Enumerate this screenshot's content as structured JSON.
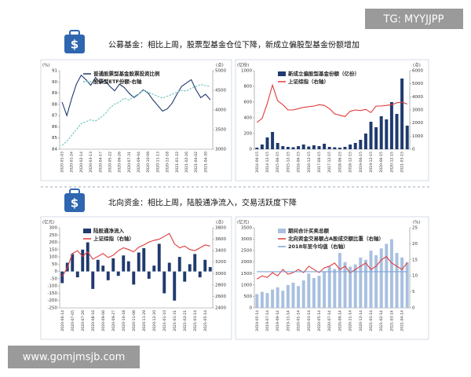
{
  "watermarks": {
    "top": "TG: MYYJJPP",
    "bottom": "www.gomjmsjb.com"
  },
  "sections": [
    {
      "heading": "公募基金：相比上周，股票型基金仓位下降，新成立偏股型基金份额增加"
    },
    {
      "heading": "北向资金：相比上周，陆股通净流入，交易活跃度下降"
    }
  ],
  "chart_data": [
    {
      "type": "line",
      "y_unit": "(%)",
      "y2_unit": "(点)",
      "categories": [
        "2020-01-03",
        null,
        "2020-01-24",
        null,
        "2020-02-14",
        null,
        "2020-03-13",
        null,
        "2020-04-17",
        null,
        "2020-05-22",
        null,
        "2020-06-26",
        null,
        "2020-07-31",
        null,
        "2020-09-04",
        null,
        "2020-10-09",
        null,
        "2020-11-13",
        null,
        "2020-12-18",
        null,
        "2021-01-22",
        null,
        "2021-02-26",
        null,
        "2021-04-02",
        null,
        "2021-04-30",
        null
      ],
      "ylim": [
        84,
        91
      ],
      "yticks": [
        84,
        85,
        86,
        87,
        88,
        89,
        90,
        91
      ],
      "y2lim": [
        3000,
        5000
      ],
      "y2ticks": [
        3000,
        3500,
        4000,
        4500,
        5000
      ],
      "series": [
        {
          "name": "普通股票型基金股票投资比例",
          "color": "#1f3a6e",
          "values": [
            88.2,
            87.0,
            88.5,
            89.8,
            90.6,
            90.2,
            89.7,
            90.4,
            89.9,
            90.1,
            89.6,
            89.2,
            89.8,
            89.5,
            89.0,
            88.6,
            88.9,
            89.3,
            89.0,
            88.4,
            87.9,
            87.4,
            87.6,
            88.1,
            88.9,
            89.6,
            89.9,
            90.2,
            89.3,
            88.6,
            88.9,
            88.4
          ]
        },
        {
          "name": "股票型ETF份额-右轴",
          "color": "#6cc4c0",
          "axis": "y2",
          "dashed": true,
          "values": [
            3100,
            3200,
            3350,
            3500,
            3650,
            3700,
            3750,
            3720,
            3800,
            3900,
            4050,
            4150,
            4200,
            4300,
            4250,
            4350,
            4400,
            4500,
            4450,
            4400,
            4350,
            4300,
            4350,
            4400,
            4450,
            4500,
            4480,
            4550,
            4600,
            4650,
            4620,
            4600
          ]
        }
      ]
    },
    {
      "type": "bar",
      "y_unit": "(亿份)",
      "y2_unit": "(点)",
      "categories": [
        "2014-06-15",
        null,
        "2014-12-15",
        null,
        "2015-06-15",
        null,
        "2015-12-15",
        null,
        "2016-06-15",
        null,
        "2016-12-15",
        null,
        "2017-06-15",
        null,
        "2017-12-15",
        null,
        "2018-06-15",
        null,
        "2018-12-15",
        null,
        "2019-06-15",
        null,
        "2019-12-15",
        null,
        "2020-06-15",
        null,
        "2020-12-15",
        null,
        "2021-03-15",
        null
      ],
      "ylim": [
        0,
        1000
      ],
      "yticks": [
        0,
        200,
        400,
        600,
        800,
        1000
      ],
      "y2lim": [
        0,
        6000
      ],
      "y2ticks": [
        0,
        1000,
        2000,
        3000,
        4000,
        5000,
        6000
      ],
      "series": [
        {
          "name": "新成立偏股型基金份额（亿份）",
          "color": "#1f3a6e",
          "values": [
            20,
            60,
            150,
            220,
            80,
            40,
            30,
            25,
            40,
            60,
            35,
            50,
            40,
            70,
            30,
            25,
            20,
            30,
            60,
            80,
            120,
            200,
            350,
            280,
            420,
            380,
            600,
            450,
            900,
            300
          ]
        },
        {
          "name": "上证综指（右轴）",
          "color": "#e03a3a",
          "type": "line",
          "axis": "y2",
          "values": [
            2050,
            2350,
            3500,
            4900,
            3700,
            3400,
            3000,
            3000,
            3100,
            3200,
            3250,
            3300,
            3400,
            3350,
            3100,
            2700,
            2600,
            2500,
            2900,
            3000,
            2950,
            3050,
            2800,
            3300,
            3300,
            3350,
            3400,
            3550,
            3600,
            3450
          ]
        }
      ]
    },
    {
      "type": "bar",
      "y_unit": "(亿元)",
      "y2_unit": "(点)",
      "categories": [
        "2020-06-14",
        null,
        "2020-07-05",
        null,
        "2020-07-26",
        null,
        "2020-08-16",
        null,
        "2020-09-06",
        null,
        "2020-09-27",
        null,
        "2020-10-18",
        null,
        "2020-11-08",
        null,
        "2020-11-29",
        null,
        "2020-12-20",
        null,
        "2021-01-10",
        null,
        "2021-01-31",
        null,
        "2021-02-21",
        null,
        "2021-03-14",
        null,
        "2021-05-14",
        null
      ],
      "ylim": [
        -250,
        300
      ],
      "yticks": [
        -250,
        -200,
        -150,
        -100,
        -50,
        0,
        50,
        100,
        150,
        200,
        250,
        300
      ],
      "y2lim": [
        2400,
        3800
      ],
      "y2ticks": [
        2400,
        2600,
        2800,
        3000,
        3200,
        3400,
        3600,
        3800
      ],
      "series": [
        {
          "name": "陆股通净流入",
          "color": "#1f3a6e",
          "values": [
            -80,
            60,
            120,
            -40,
            150,
            200,
            -120,
            80,
            40,
            -60,
            90,
            -30,
            110,
            70,
            -90,
            130,
            160,
            -50,
            40,
            190,
            -150,
            60,
            -200,
            100,
            -70,
            50,
            120,
            -40,
            80,
            30
          ]
        },
        {
          "name": "上证综指（右轴）",
          "color": "#e03a3a",
          "type": "line",
          "axis": "y2",
          "values": [
            2950,
            3100,
            3350,
            3400,
            3300,
            3380,
            3250,
            3300,
            3350,
            3280,
            3320,
            3400,
            3450,
            3420,
            3380,
            3460,
            3500,
            3550,
            3580,
            3600,
            3650,
            3700,
            3520,
            3450,
            3480,
            3420,
            3400,
            3450,
            3500,
            3480
          ]
        }
      ]
    },
    {
      "type": "bar",
      "y_unit": "(亿元)",
      "y2_unit": "(%)",
      "categories": [
        "2019-05-14",
        null,
        "2019-07-14",
        null,
        "2019-09-14",
        null,
        "2019-11-14",
        null,
        "2020-01-14",
        null,
        "2020-03-14",
        null,
        "2020-05-14",
        null,
        "2020-07-14",
        null,
        "2020-09-14",
        null,
        "2020-11-14",
        null,
        "2020-12-14",
        null,
        "2021-01-14",
        null,
        "2021-02-14",
        null,
        "2021-03-14",
        null,
        "2021-04-14",
        null
      ],
      "ylim": [
        0,
        3500
      ],
      "yticks": [
        0,
        500,
        1000,
        1500,
        2000,
        2500,
        3000,
        3500
      ],
      "y2lim": [
        0,
        25
      ],
      "y2ticks": [
        0,
        5,
        10,
        15,
        20,
        25
      ],
      "series": [
        {
          "name": "期间合计买卖总额",
          "color": "#a9c0e0",
          "values": [
            600,
            700,
            650,
            800,
            900,
            750,
            1000,
            1100,
            950,
            1200,
            1500,
            1300,
            1400,
            1600,
            1800,
            1700,
            2400,
            2000,
            1800,
            1900,
            2200,
            2100,
            2500,
            2300,
            2600,
            2800,
            3000,
            2400,
            2200,
            2000
          ]
        },
        {
          "name": "北向资金交易额占A股成交额比重（右轴）",
          "color": "#e03a3a",
          "type": "line",
          "axis": "y2",
          "values": [
            9,
            10,
            9.5,
            11,
            10,
            12,
            10.5,
            11,
            12,
            11,
            13,
            12,
            11,
            12.5,
            13,
            14,
            12,
            13,
            11,
            12,
            13,
            14,
            12,
            13,
            15,
            16,
            14,
            13,
            12,
            14
          ]
        },
        {
          "name": "2018年至今均值（右轴）",
          "color": "#7fa3d8",
          "type": "line",
          "axis": "y2",
          "values": [
            11.3,
            11.3,
            11.3,
            11.3,
            11.3,
            11.3,
            11.3,
            11.3,
            11.3,
            11.3,
            11.3,
            11.3,
            11.3,
            11.3,
            11.3,
            11.3,
            11.3,
            11.3,
            11.3,
            11.3,
            11.3,
            11.3,
            11.3,
            11.3,
            11.3,
            11.3,
            11.3,
            11.3,
            11.3,
            11.3
          ]
        }
      ]
    }
  ]
}
